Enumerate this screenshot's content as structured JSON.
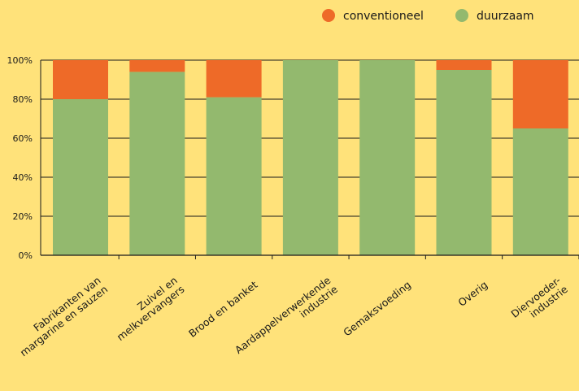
{
  "chart_data": {
    "type": "bar",
    "stacked": true,
    "percent": true,
    "categories": [
      [
        "Fabrikanten van",
        "margarine en sauzen"
      ],
      [
        "Zuivel en",
        "melkvervangers"
      ],
      [
        "Brood en banket"
      ],
      [
        "Aardappelverwerkende",
        "industrie"
      ],
      [
        "Gemaksvoeding"
      ],
      [
        "Overig"
      ],
      [
        "Diervoeder-",
        "industrie"
      ]
    ],
    "series": [
      {
        "name": "duurzaam",
        "color": "#93B96E",
        "values": [
          80,
          94,
          81,
          100,
          100,
          95,
          65
        ]
      },
      {
        "name": "conventioneel",
        "color": "#EE6A28",
        "values": [
          20,
          6,
          19,
          0,
          0,
          5,
          35
        ]
      }
    ],
    "legend_order": [
      "conventioneel",
      "duurzaam"
    ],
    "legend_position": "top-right",
    "ylim": [
      0,
      100
    ],
    "yticks": [
      "0%",
      "20%",
      "40%",
      "60%",
      "80%",
      "100%"
    ],
    "grid": true,
    "background": "#FFE27A"
  }
}
